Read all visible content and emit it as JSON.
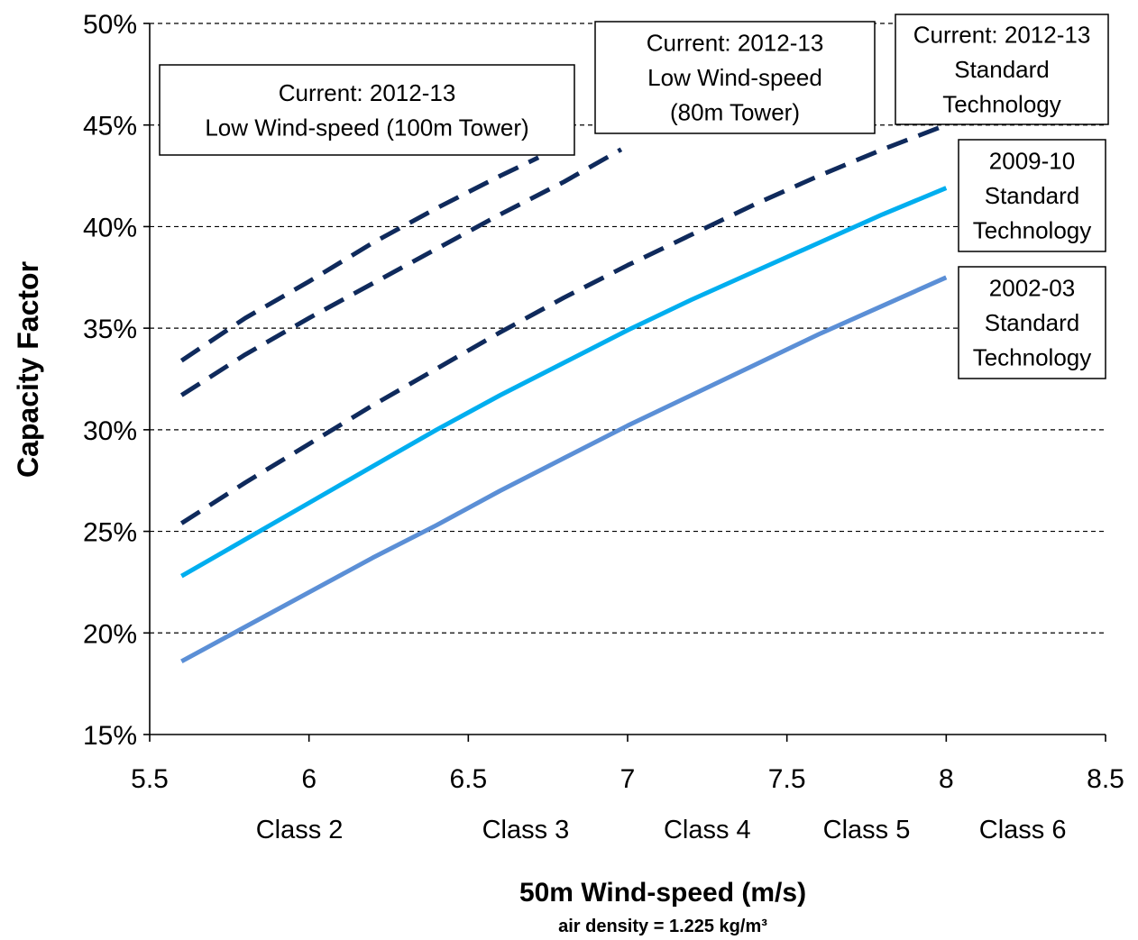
{
  "chart_data": {
    "type": "line",
    "xlabel": "50m Wind-speed (m/s)",
    "xlabel_sub": "air density = 1.225 kg/m³",
    "ylabel": "Capacity Factor",
    "xlim": [
      5.5,
      8.5
    ],
    "ylim": [
      0.15,
      0.5
    ],
    "x_ticks": [
      "5.5",
      "6",
      "6.5",
      "7",
      "7.5",
      "8",
      "8.5"
    ],
    "x_tick_values": [
      5.5,
      6,
      6.5,
      7,
      7.5,
      8,
      8.5
    ],
    "y_ticks": [
      "15%",
      "20%",
      "25%",
      "30%",
      "35%",
      "40%",
      "45%",
      "50%"
    ],
    "y_tick_values": [
      0.15,
      0.2,
      0.25,
      0.3,
      0.35,
      0.4,
      0.45,
      0.5
    ],
    "grid": "horizontal dashed",
    "wind_classes": [
      {
        "label": "Class 2",
        "x": 5.97
      },
      {
        "label": "Class 3",
        "x": 6.68
      },
      {
        "label": "Class 4",
        "x": 7.25
      },
      {
        "label": "Class 5",
        "x": 7.75
      },
      {
        "label": "Class 6",
        "x": 8.24
      }
    ],
    "series": [
      {
        "labels": [
          "Current: 2012-13",
          "Low Wind-speed (100m Tower)"
        ],
        "label_style": "single-box",
        "color": "#0f2a5c",
        "dash": true,
        "x": [
          5.6,
          5.8,
          6.0,
          6.2,
          6.4,
          6.6,
          6.72
        ],
        "y": [
          0.334,
          0.355,
          0.373,
          0.392,
          0.409,
          0.425,
          0.434
        ]
      },
      {
        "labels": [
          "Current: 2012-13",
          "Low Wind-speed",
          "(80m Tower)"
        ],
        "label_style": "single-box",
        "color": "#0f2a5c",
        "dash": true,
        "x": [
          5.6,
          5.8,
          6.0,
          6.2,
          6.4,
          6.6,
          6.8,
          6.98
        ],
        "y": [
          0.317,
          0.337,
          0.355,
          0.372,
          0.389,
          0.406,
          0.422,
          0.438
        ]
      },
      {
        "labels": [
          "Current: 2012-13",
          "Standard",
          "Technology"
        ],
        "label_style": "single-box",
        "color": "#0f2a5c",
        "dash": true,
        "x": [
          5.6,
          5.8,
          6.0,
          6.2,
          6.4,
          6.6,
          6.8,
          7.0,
          7.2,
          7.4,
          7.6,
          7.8,
          8.0
        ],
        "y": [
          0.254,
          0.274,
          0.293,
          0.312,
          0.33,
          0.348,
          0.365,
          0.381,
          0.396,
          0.411,
          0.425,
          0.438,
          0.45
        ]
      },
      {
        "labels": [
          "2009-10",
          "Standard",
          "Technology"
        ],
        "label_style": "single-box",
        "color": "#00aeef",
        "dash": false,
        "x": [
          5.6,
          5.8,
          6.0,
          6.2,
          6.4,
          6.6,
          6.8,
          7.0,
          7.2,
          7.4,
          7.6,
          7.8,
          8.0
        ],
        "y": [
          0.228,
          0.246,
          0.264,
          0.282,
          0.3,
          0.317,
          0.333,
          0.349,
          0.364,
          0.378,
          0.392,
          0.406,
          0.419
        ]
      },
      {
        "labels": [
          "2002-03",
          "Standard",
          "Technology"
        ],
        "label_style": "single-box",
        "color": "#5b8fd6",
        "dash": false,
        "x": [
          5.6,
          5.8,
          6.0,
          6.2,
          6.4,
          6.6,
          6.8,
          7.0,
          7.2,
          7.4,
          7.6,
          7.8,
          8.0
        ],
        "y": [
          0.186,
          0.203,
          0.22,
          0.237,
          0.253,
          0.27,
          0.286,
          0.302,
          0.317,
          0.332,
          0.347,
          0.361,
          0.375
        ]
      }
    ]
  }
}
